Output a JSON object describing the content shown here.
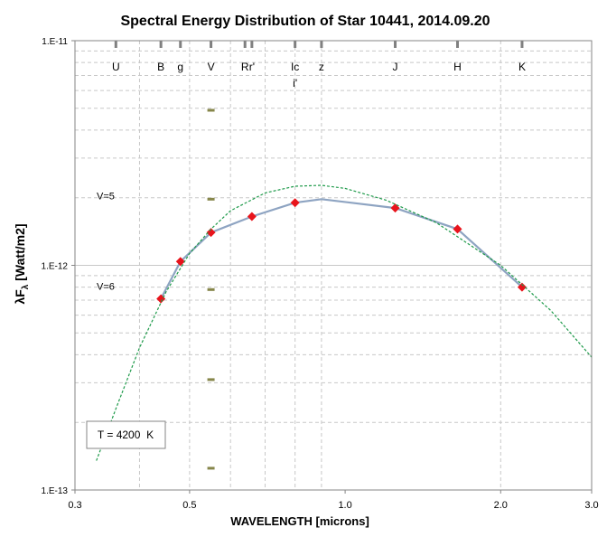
{
  "chart_data": {
    "type": "line",
    "title": "Spectral Energy Distribution of Star 10441, 2014.09.20",
    "xlabel": "WAVELENGTH [microns]",
    "ylabel_main": "λF",
    "ylabel_sub": "λ",
    "ylabel_rest": " [Watt/m2]",
    "x_scale": "log",
    "y_scale": "log",
    "xlim": [
      0.3,
      3.0
    ],
    "ylim": [
      1e-13,
      1e-11
    ],
    "x_ticks": [
      {
        "value": 0.3,
        "label": "0.3"
      },
      {
        "value": 0.5,
        "label": "0.5"
      },
      {
        "value": 1.0,
        "label": "1.0"
      },
      {
        "value": 2.0,
        "label": "2.0"
      },
      {
        "value": 3.0,
        "label": "3.0"
      }
    ],
    "y_ticks": [
      {
        "value": 1e-13,
        "label": "1.E-13"
      },
      {
        "value": 1e-12,
        "label": "1.E-12"
      },
      {
        "value": 1e-11,
        "label": "1.E-11"
      }
    ],
    "x_gridlines": [
      0.4,
      0.5,
      0.6,
      0.7,
      0.8,
      0.9,
      2.0
    ],
    "bands": [
      {
        "name": "U",
        "wavelength": 0.36
      },
      {
        "name": "B",
        "wavelength": 0.44
      },
      {
        "name": "g",
        "wavelength": 0.48
      },
      {
        "name": "V",
        "wavelength": 0.55
      },
      {
        "name": "R",
        "wavelength": 0.64
      },
      {
        "name": "r'",
        "wavelength": 0.66
      },
      {
        "name": "Ic",
        "wavelength": 0.8
      },
      {
        "name": "i'",
        "wavelength": 0.8
      },
      {
        "name": "z",
        "wavelength": 0.9
      },
      {
        "name": "J",
        "wavelength": 1.25
      },
      {
        "name": "H",
        "wavelength": 1.65
      },
      {
        "name": "K",
        "wavelength": 2.2
      }
    ],
    "series": [
      {
        "type": "line",
        "color": "#8EA4C2",
        "points": [
          {
            "x": 0.44,
            "y": 7.1e-13
          },
          {
            "x": 0.48,
            "y": 1.04e-12
          },
          {
            "x": 0.55,
            "y": 1.4e-12
          },
          {
            "x": 0.66,
            "y": 1.65e-12
          },
          {
            "x": 0.8,
            "y": 1.9e-12
          },
          {
            "x": 0.9,
            "y": 1.97e-12
          },
          {
            "x": 1.25,
            "y": 1.8e-12
          },
          {
            "x": 1.65,
            "y": 1.45e-12
          },
          {
            "x": 2.2,
            "y": 8e-13
          }
        ]
      },
      {
        "type": "markers",
        "color": "#E8141C",
        "points": [
          {
            "x": 0.44,
            "y": 7.1e-13
          },
          {
            "x": 0.48,
            "y": 1.04e-12
          },
          {
            "x": 0.55,
            "y": 1.4e-12
          },
          {
            "x": 0.66,
            "y": 1.65e-12
          },
          {
            "x": 0.8,
            "y": 1.9e-12
          },
          {
            "x": 1.25,
            "y": 1.8e-12
          },
          {
            "x": 1.65,
            "y": 1.45e-12
          },
          {
            "x": 2.2,
            "y": 8e-13
          }
        ]
      },
      {
        "type": "dashed-curve",
        "color": "#1E9A4A",
        "points": [
          {
            "x": 0.33,
            "y": 1.35e-13
          },
          {
            "x": 0.36,
            "y": 2.3e-13
          },
          {
            "x": 0.4,
            "y": 4.3e-13
          },
          {
            "x": 0.45,
            "y": 7.6e-13
          },
          {
            "x": 0.5,
            "y": 1.13e-12
          },
          {
            "x": 0.55,
            "y": 1.45e-12
          },
          {
            "x": 0.6,
            "y": 1.75e-12
          },
          {
            "x": 0.7,
            "y": 2.1e-12
          },
          {
            "x": 0.8,
            "y": 2.25e-12
          },
          {
            "x": 0.9,
            "y": 2.27e-12
          },
          {
            "x": 1.0,
            "y": 2.2e-12
          },
          {
            "x": 1.2,
            "y": 1.95e-12
          },
          {
            "x": 1.5,
            "y": 1.55e-12
          },
          {
            "x": 2.0,
            "y": 1e-12
          },
          {
            "x": 2.5,
            "y": 6.3e-13
          },
          {
            "x": 3.0,
            "y": 3.9e-13
          }
        ]
      }
    ],
    "v_magnitude_scale": [
      {
        "value": 4.9e-12,
        "label": ""
      },
      {
        "value": 1.97e-12,
        "label": "V=5"
      },
      {
        "value": 7.8e-13,
        "label": "V=6"
      },
      {
        "value": 3.1e-13,
        "label": ""
      },
      {
        "value": 1.25e-13,
        "label": ""
      }
    ],
    "annotation": "T = 4200  K",
    "grid": true,
    "colors": {
      "axis": "#868686",
      "grid": "#C8C8C8",
      "tick_marker": "#86864A"
    }
  }
}
